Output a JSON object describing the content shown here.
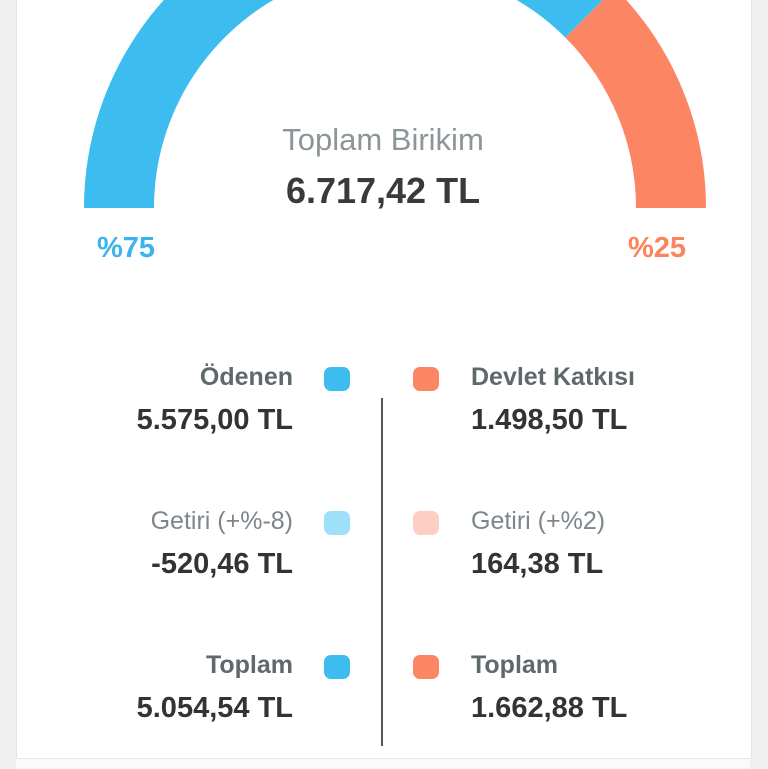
{
  "summary": {
    "title": "Toplam Birikim",
    "total": "6.717,42 TL",
    "left_percent": "%75",
    "right_percent": "%25"
  },
  "gauge": {
    "shares": [
      75,
      25
    ],
    "colors": [
      "#3dbcef",
      "#fc8563"
    ]
  },
  "left": {
    "paid": {
      "label": "Ödenen",
      "value": "5.575,00 TL",
      "color": "#3dbcef"
    },
    "return": {
      "label": "Getiri (+%-8)",
      "value": "-520,46 TL",
      "color": "#9edffa"
    },
    "total": {
      "label": "Toplam",
      "value": "5.054,54 TL",
      "color": "#3dbcef"
    }
  },
  "right": {
    "state": {
      "label": "Devlet Katkısı",
      "value": "1.498,50 TL",
      "color": "#fc8563"
    },
    "return": {
      "label": "Getiri (+%2)",
      "value": "164,38 TL",
      "color": "#fdcfc2"
    },
    "total": {
      "label": "Toplam",
      "value": "1.662,88 TL",
      "color": "#fc8563"
    }
  }
}
